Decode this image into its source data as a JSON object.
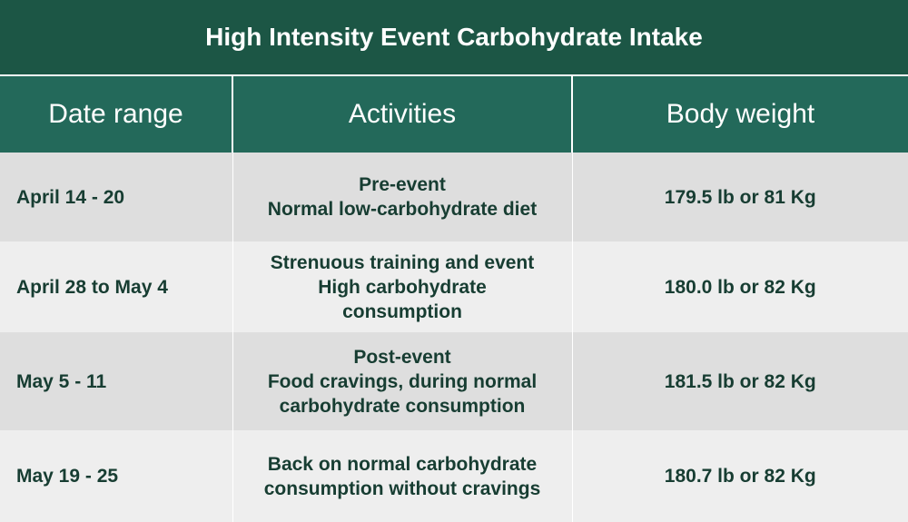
{
  "title": "High Intensity Event Carbohydrate Intake",
  "headers": {
    "date": "Date range",
    "activities": "Activities",
    "weight": "Body weight"
  },
  "rows": [
    {
      "date": "April 14 - 20",
      "activities": [
        "Pre-event",
        "Normal low-carbohydrate diet"
      ],
      "weight": "179.5 lb or 81 Kg"
    },
    {
      "date": "April 28 to May 4",
      "activities": [
        "Strenuous training and event",
        "High carbohydrate",
        "consumption"
      ],
      "weight": "180.0 lb or 82 Kg"
    },
    {
      "date": "May 5 - 11",
      "activities": [
        "Post-event",
        "Food cravings, during normal",
        "carbohydrate consumption"
      ],
      "weight": "181.5 lb or 82 Kg"
    },
    {
      "date": "May 19 - 25",
      "activities": [
        "Back on normal carbohydrate",
        "consumption without cravings"
      ],
      "weight": "180.7 lb or 82 Kg"
    }
  ],
  "colors": {
    "title_bg": "#1c5645",
    "header_bg": "#23695a",
    "row_dark": "#dedede",
    "row_light": "#eeeeee",
    "text": "#173d32"
  }
}
